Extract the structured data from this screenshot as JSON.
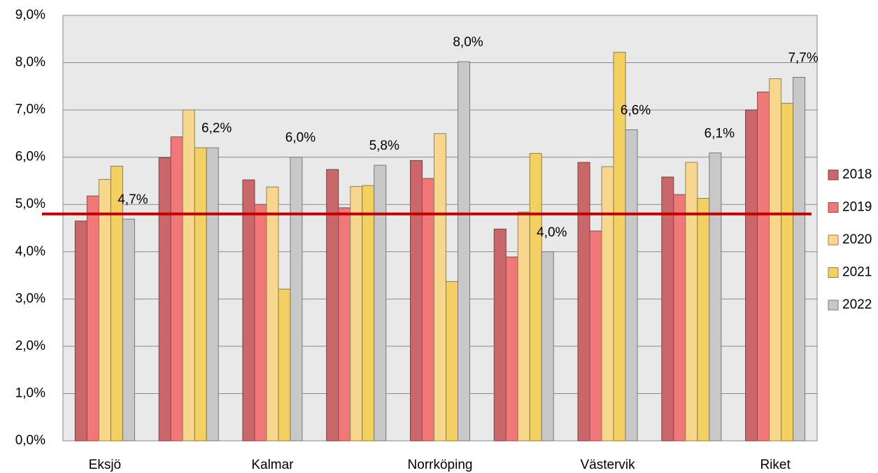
{
  "chart_data": {
    "type": "bar",
    "categories": [
      "Eksjö",
      null,
      "Kalmar",
      null,
      "Norrköping",
      null,
      "Västervik",
      null,
      "Riket"
    ],
    "series": [
      {
        "name": "2018",
        "color": "#c9676b",
        "values": [
          4.65,
          5.99,
          5.52,
          5.74,
          5.93,
          4.48,
          5.89,
          5.58,
          7.0
        ]
      },
      {
        "name": "2019",
        "color": "#f07878",
        "values": [
          5.18,
          6.43,
          5.0,
          4.93,
          5.55,
          3.89,
          4.44,
          5.21,
          7.38
        ]
      },
      {
        "name": "2020",
        "color": "#f7d68e",
        "values": [
          5.53,
          7.0,
          5.37,
          5.38,
          6.5,
          4.84,
          5.8,
          5.89,
          7.66
        ]
      },
      {
        "name": "2021",
        "color": "#f3d062",
        "values": [
          5.81,
          6.2,
          3.21,
          5.4,
          3.37,
          6.08,
          8.22,
          5.13,
          7.14
        ]
      },
      {
        "name": "2022",
        "color": "#c8c8c8",
        "values": [
          4.69,
          6.2,
          6.0,
          5.83,
          8.02,
          4.0,
          6.58,
          6.09,
          7.69
        ],
        "value_labels": [
          "4,7%",
          "6,2%",
          "6,0%",
          "5,8%",
          "8,0%",
          "4,0%",
          "6,6%",
          "6,1%",
          "7,7%"
        ]
      }
    ],
    "ylim": [
      0,
      9
    ],
    "yticks": [
      {
        "value": 0,
        "label": "0,0%"
      },
      {
        "value": 1,
        "label": "1,0%"
      },
      {
        "value": 2,
        "label": "2,0%"
      },
      {
        "value": 3,
        "label": "3,0%"
      },
      {
        "value": 4,
        "label": "4,0%"
      },
      {
        "value": 5,
        "label": "5,0%"
      },
      {
        "value": 6,
        "label": "6,0%"
      },
      {
        "value": 7,
        "label": "7,0%"
      },
      {
        "value": 8,
        "label": "8,0%"
      },
      {
        "value": 9,
        "label": "9,0%"
      }
    ],
    "grid": true,
    "legend": "right",
    "reference_line": {
      "value": 4.8,
      "color": "#c00000"
    }
  }
}
